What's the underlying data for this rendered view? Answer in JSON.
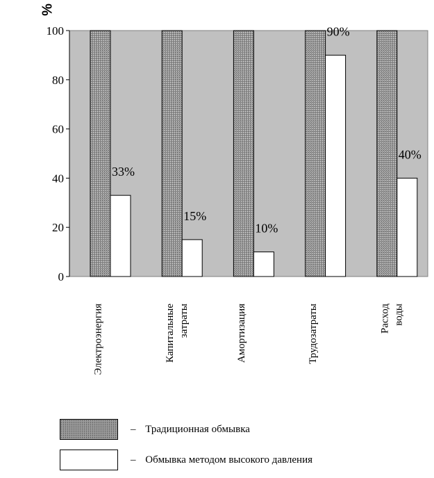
{
  "chart_data": {
    "type": "bar",
    "ylabel": "%",
    "ylim": [
      0,
      100
    ],
    "yticks": [
      0,
      20,
      40,
      60,
      80,
      100
    ],
    "grid": false,
    "plot_background": "#c0c0c0",
    "categories": [
      [
        "Электроэнергия"
      ],
      [
        "Капитальные",
        "затраты"
      ],
      [
        "Амортизация"
      ],
      [
        "Трудозатраты"
      ],
      [
        "Расход",
        "воды"
      ]
    ],
    "series": [
      {
        "name": "Традиционная обмывка",
        "values": [
          100,
          100,
          100,
          100,
          100
        ],
        "fill": "hatched-gray"
      },
      {
        "name": "Обмывка методом высокого давления",
        "values": [
          33,
          15,
          10,
          90,
          40
        ],
        "fill": "#ffffff",
        "data_labels": [
          "33%",
          "15%",
          "10%",
          "90%",
          "40%"
        ]
      }
    ],
    "legend": {
      "position": "bottom",
      "dash": "–",
      "items": [
        {
          "label": "Традиционная обмывка"
        },
        {
          "label": "Обмывка методом высокого давления"
        }
      ]
    }
  }
}
